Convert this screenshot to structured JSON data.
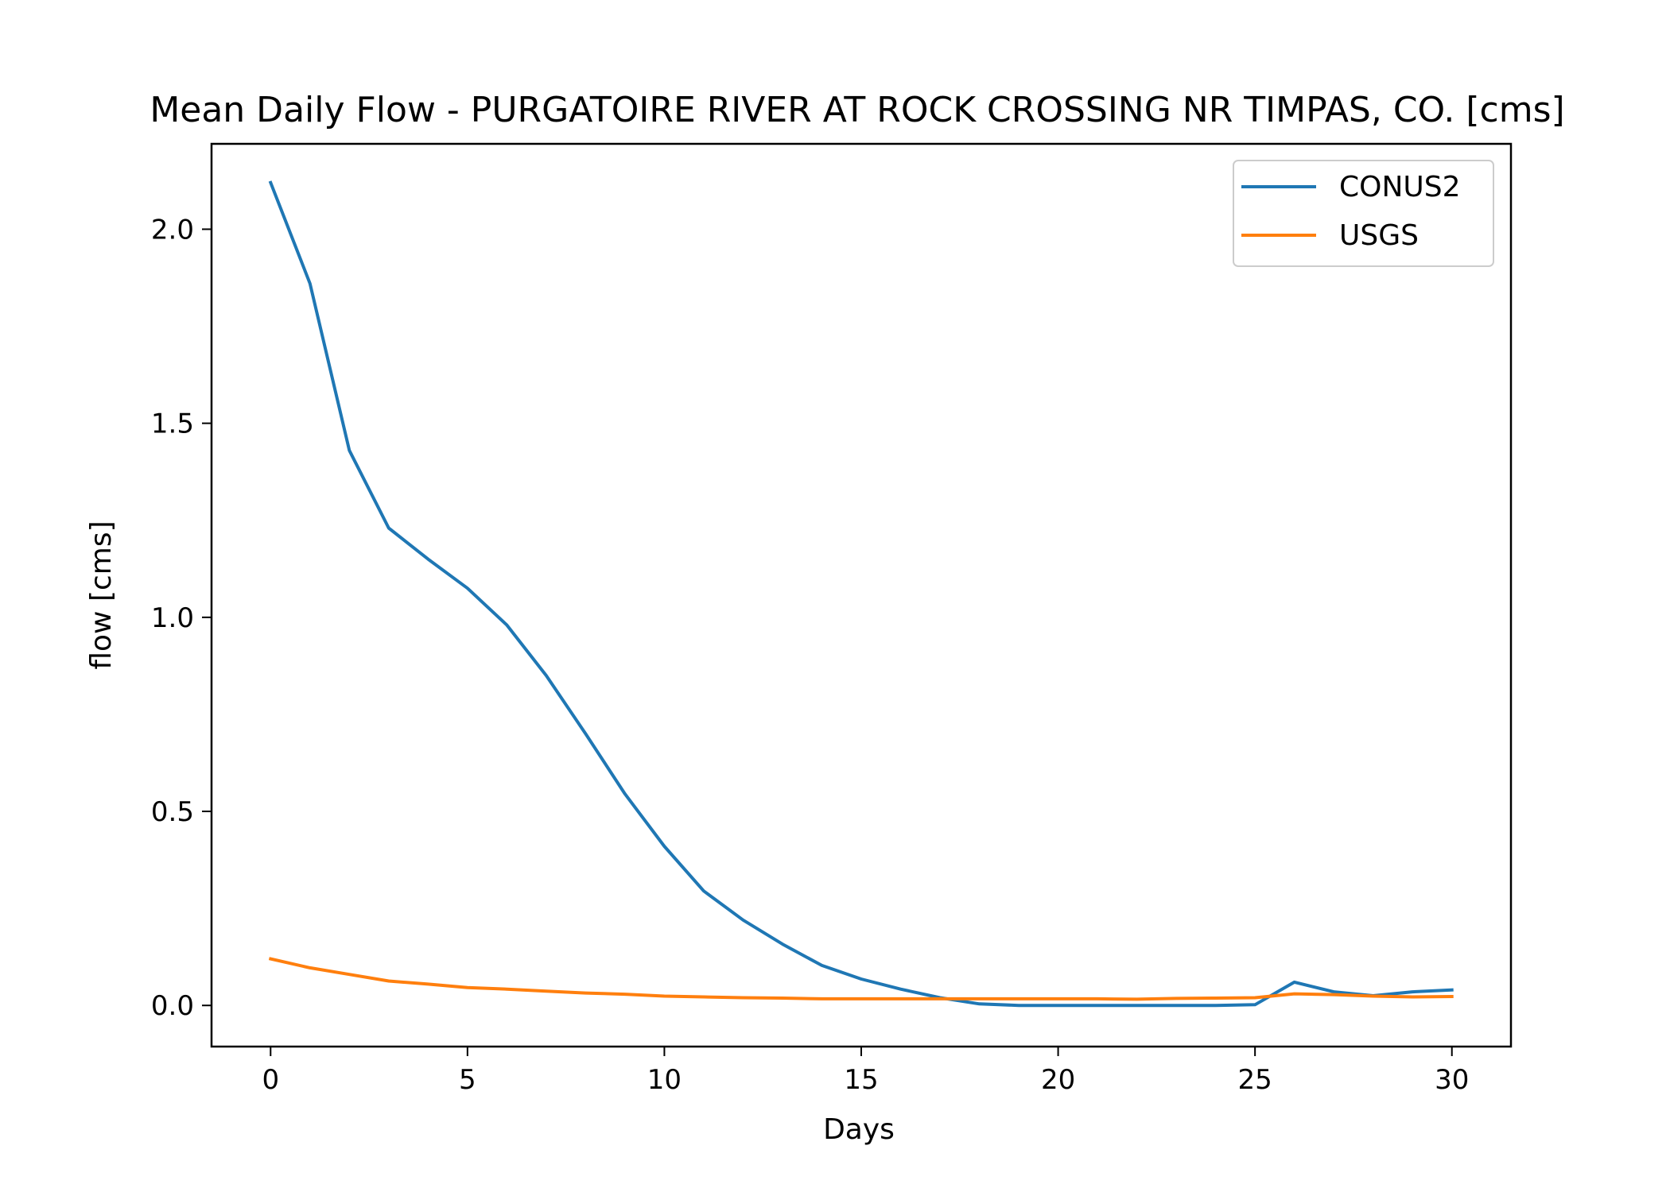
{
  "chart_data": {
    "type": "line",
    "title": "Mean Daily Flow - PURGATOIRE RIVER AT ROCK CROSSING NR TIMPAS, CO. [cms]",
    "xlabel": "Days",
    "ylabel": "flow [cms]",
    "xlim": [
      -1.5,
      31.5
    ],
    "ylim": [
      -0.106,
      2.22
    ],
    "xticks": [
      0,
      5,
      10,
      15,
      20,
      25,
      30
    ],
    "xtick_labels": [
      "0",
      "5",
      "10",
      "15",
      "20",
      "25",
      "30"
    ],
    "yticks": [
      0.0,
      0.5,
      1.0,
      1.5,
      2.0
    ],
    "ytick_labels": [
      "0.0",
      "0.5",
      "1.0",
      "1.5",
      "2.0"
    ],
    "grid": false,
    "legend_position": "top-right",
    "x": [
      0,
      1,
      2,
      3,
      4,
      5,
      6,
      7,
      8,
      9,
      10,
      11,
      12,
      13,
      14,
      15,
      16,
      17,
      18,
      19,
      20,
      21,
      22,
      23,
      24,
      25,
      26,
      27,
      28,
      29,
      30
    ],
    "series": [
      {
        "name": "CONUS2",
        "color": "#1f77b4",
        "values": [
          2.12,
          1.86,
          1.43,
          1.23,
          1.15,
          1.075,
          0.98,
          0.85,
          0.7,
          0.545,
          0.41,
          0.295,
          0.22,
          0.158,
          0.103,
          0.068,
          0.042,
          0.02,
          0.004,
          0.0,
          0.0,
          0.0,
          0.0,
          0.0,
          0.0,
          0.002,
          0.06,
          0.035,
          0.025,
          0.035,
          0.04
        ]
      },
      {
        "name": "USGS",
        "color": "#ff7f0e",
        "values": [
          0.12,
          0.097,
          0.08,
          0.063,
          0.055,
          0.046,
          0.042,
          0.037,
          0.032,
          0.029,
          0.024,
          0.022,
          0.02,
          0.019,
          0.017,
          0.017,
          0.017,
          0.017,
          0.017,
          0.017,
          0.017,
          0.017,
          0.016,
          0.018,
          0.019,
          0.02,
          0.03,
          0.028,
          0.024,
          0.022,
          0.023
        ]
      }
    ]
  }
}
